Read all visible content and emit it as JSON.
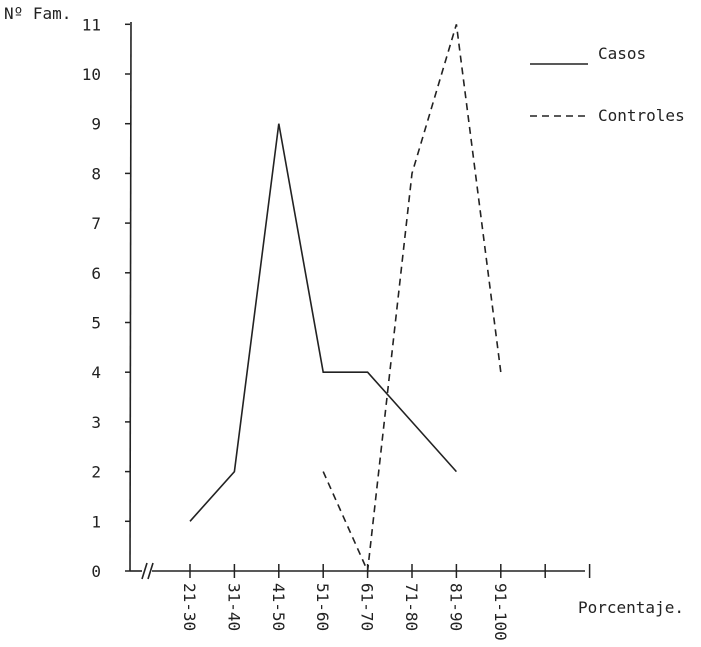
{
  "chart_data": {
    "type": "line",
    "ylabel": "Nº Fam.",
    "xlabel": "Porcentaje.",
    "categories": [
      "21-30",
      "31-40",
      "41-50",
      "51-60",
      "61-70",
      "71-80",
      "81-90",
      "91-100"
    ],
    "y_ticks": [
      0,
      1,
      2,
      3,
      4,
      5,
      6,
      7,
      8,
      9,
      10,
      11
    ],
    "ylim": [
      0,
      11
    ],
    "grid": false,
    "legend_placement": "top-right",
    "series": [
      {
        "name": "Casos",
        "style": "solid",
        "values": [
          1,
          2,
          9,
          4,
          4,
          3,
          2,
          null
        ]
      },
      {
        "name": "Controles",
        "style": "dashed",
        "values": [
          null,
          null,
          null,
          2,
          0,
          8,
          11,
          4
        ]
      }
    ]
  }
}
